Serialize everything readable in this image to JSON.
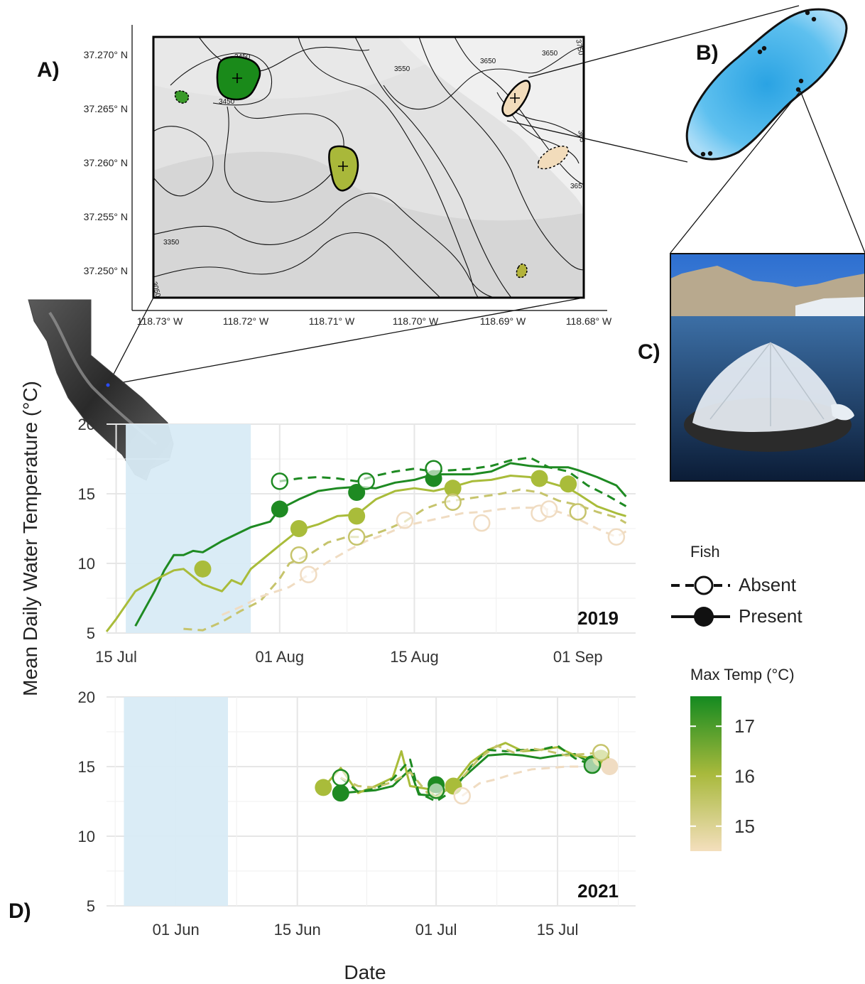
{
  "panel_labels": {
    "a": "A)",
    "b": "B)",
    "c": "C)",
    "d": "D)"
  },
  "map": {
    "lat_labels": [
      "37.270° N",
      "37.265° N",
      "37.260° N",
      "37.255° N",
      "37.250° N"
    ],
    "lon_labels": [
      "118.73° W",
      "118.72° W",
      "118.71° W",
      "118.70° W",
      "118.69° W",
      "118.68° W"
    ],
    "contour_labels": [
      "3450",
      "3450",
      "3550",
      "3650",
      "3650",
      "3350",
      "3050",
      "3750",
      "365",
      "365"
    ],
    "lake_colors": [
      "#1a8a1a",
      "#a9b83a",
      "#f2dcbb",
      "#3a9a2a",
      "#b3b33a"
    ]
  },
  "photo": {
    "description_icon": "photo-floating-enclosure"
  },
  "legend": {
    "fish_title": "Fish",
    "absent_label": "Absent",
    "present_label": "Present",
    "maxtemp_title": "Max Temp (°C)",
    "maxtemp_ticks": [
      "17",
      "16",
      "15"
    ],
    "maxtemp_tick_values": [
      17,
      16,
      15
    ],
    "maxtemp_range": [
      14.5,
      17.6
    ],
    "gradient_colors": [
      "#f4dfbd",
      "#a8b93c",
      "#148a20"
    ]
  },
  "y_axis_title": "Mean Daily Water Temperature (°C)",
  "x_axis_title": "Date",
  "colors": {
    "dark": "#1e8a22",
    "mid": "#a9bc3a",
    "light": "#c6c46c",
    "pale": "#f0dcc2",
    "shade": "#d8ebf6",
    "grid": "#e6e6e6"
  },
  "chart_data": [
    {
      "type": "line",
      "panel": "2019",
      "year_label": "2019",
      "xlabel": "",
      "ylabel": "Mean Daily Water Temperature (°C)",
      "ylim": [
        5,
        20
      ],
      "yticks": [
        5,
        10,
        15,
        20
      ],
      "xlim": [
        "2019-07-14",
        "2019-09-07"
      ],
      "xticks": [
        {
          "date": "2019-07-15",
          "label": "15 Jul"
        },
        {
          "date": "2019-08-01",
          "label": "01 Aug"
        },
        {
          "date": "2019-08-15",
          "label": "15 Aug"
        },
        {
          "date": "2019-09-01",
          "label": "01 Sep"
        }
      ],
      "shaded_period": [
        "2019-07-16",
        "2019-07-29"
      ],
      "grid": true,
      "series": [
        {
          "fish": "Present",
          "color": "#1e8a22",
          "x": [
            "2019-07-17",
            "2019-07-19",
            "2019-07-20",
            "2019-07-21",
            "2019-07-22",
            "2019-07-23",
            "2019-07-24",
            "2019-07-26",
            "2019-07-29",
            "2019-07-31",
            "2019-08-01",
            "2019-08-03",
            "2019-08-05",
            "2019-08-07",
            "2019-08-09",
            "2019-08-11",
            "2019-08-13",
            "2019-08-15",
            "2019-08-17",
            "2019-08-19",
            "2019-08-21",
            "2019-08-23",
            "2019-08-25",
            "2019-08-27",
            "2019-08-29",
            "2019-08-31",
            "2019-09-01",
            "2019-09-03",
            "2019-09-05",
            "2019-09-06"
          ],
          "y": [
            5.5,
            8.0,
            9.5,
            10.6,
            10.6,
            10.9,
            10.8,
            11.6,
            12.6,
            13.0,
            13.9,
            14.6,
            15.2,
            15.4,
            15.5,
            15.4,
            15.8,
            16.0,
            16.4,
            16.4,
            16.4,
            16.6,
            17.2,
            17.0,
            16.9,
            16.9,
            16.7,
            16.2,
            15.6,
            14.8
          ]
        },
        {
          "fish": "Present",
          "color": "#a9bc3a",
          "x": [
            "2019-07-14",
            "2019-07-15",
            "2019-07-17",
            "2019-07-19",
            "2019-07-21",
            "2019-07-22",
            "2019-07-24",
            "2019-07-26",
            "2019-07-27",
            "2019-07-28",
            "2019-07-29",
            "2019-08-01",
            "2019-08-03",
            "2019-08-05",
            "2019-08-07",
            "2019-08-09",
            "2019-08-11",
            "2019-08-13",
            "2019-08-15",
            "2019-08-17",
            "2019-08-19",
            "2019-08-21",
            "2019-08-23",
            "2019-08-25",
            "2019-08-27",
            "2019-08-29",
            "2019-08-31",
            "2019-09-01",
            "2019-09-03",
            "2019-09-05",
            "2019-09-06"
          ],
          "y": [
            5.1,
            6.0,
            8.0,
            8.8,
            9.5,
            9.6,
            8.5,
            8.0,
            8.8,
            8.5,
            9.6,
            11.3,
            12.4,
            12.8,
            13.4,
            13.5,
            14.6,
            15.2,
            15.4,
            15.2,
            15.5,
            15.9,
            16.0,
            16.3,
            16.2,
            15.8,
            15.4,
            15.0,
            14.1,
            13.6,
            13.4
          ]
        },
        {
          "fish": "Absent",
          "color": "#1e8a22",
          "x": [
            "2019-08-01",
            "2019-08-03",
            "2019-08-05",
            "2019-08-07",
            "2019-08-08",
            "2019-08-09",
            "2019-08-11",
            "2019-08-13",
            "2019-08-15",
            "2019-08-17",
            "2019-08-19",
            "2019-08-21",
            "2019-08-23",
            "2019-08-25",
            "2019-08-27",
            "2019-08-29",
            "2019-08-31",
            "2019-09-02",
            "2019-09-04",
            "2019-09-06"
          ],
          "y": [
            15.9,
            16.1,
            16.2,
            16.1,
            16.0,
            15.9,
            16.3,
            16.6,
            16.8,
            16.6,
            16.7,
            16.8,
            17.0,
            17.4,
            17.6,
            16.9,
            16.6,
            15.6,
            14.9,
            14.1
          ]
        },
        {
          "fish": "Absent",
          "color": "#c6c46c",
          "x": [
            "2019-07-22",
            "2019-07-24",
            "2019-07-26",
            "2019-07-28",
            "2019-07-30",
            "2019-08-01",
            "2019-08-02",
            "2019-08-04",
            "2019-08-06",
            "2019-08-08",
            "2019-08-10",
            "2019-08-12",
            "2019-08-14",
            "2019-08-16",
            "2019-08-18",
            "2019-08-20",
            "2019-08-22",
            "2019-08-24",
            "2019-08-26",
            "2019-08-28",
            "2019-08-30",
            "2019-09-01",
            "2019-09-03",
            "2019-09-05",
            "2019-09-06"
          ],
          "y": [
            5.3,
            5.2,
            5.8,
            6.6,
            7.3,
            8.9,
            10.0,
            10.6,
            11.5,
            11.9,
            11.9,
            12.4,
            13.0,
            13.9,
            14.4,
            14.6,
            14.8,
            15.0,
            15.3,
            15.1,
            14.5,
            14.2,
            13.7,
            13.3,
            12.9
          ]
        },
        {
          "fish": "Absent",
          "color": "#f0dcc2",
          "x": [
            "2019-07-26",
            "2019-07-28",
            "2019-07-30",
            "2019-08-02",
            "2019-08-04",
            "2019-08-06",
            "2019-08-08",
            "2019-08-10",
            "2019-08-12",
            "2019-08-14",
            "2019-08-16",
            "2019-08-18",
            "2019-08-20",
            "2019-08-22",
            "2019-08-24",
            "2019-08-26",
            "2019-08-28",
            "2019-08-30",
            "2019-09-01",
            "2019-09-03",
            "2019-09-05",
            "2019-09-06"
          ],
          "y": [
            6.3,
            6.9,
            7.6,
            8.3,
            9.2,
            10.1,
            10.9,
            11.6,
            12.1,
            12.7,
            13.0,
            13.3,
            13.6,
            13.7,
            13.9,
            14.0,
            14.0,
            13.7,
            13.2,
            12.5,
            11.9,
            12.3
          ]
        }
      ],
      "points": [
        {
          "date": "2019-07-24",
          "y": 9.6,
          "color": "#a9bc3a",
          "fish": "Present"
        },
        {
          "date": "2019-08-01",
          "y": 13.9,
          "color": "#1e8a22",
          "fish": "Present"
        },
        {
          "date": "2019-08-03",
          "y": 12.5,
          "color": "#a9bc3a",
          "fish": "Present"
        },
        {
          "date": "2019-08-09",
          "y": 13.4,
          "color": "#a9bc3a",
          "fish": "Present"
        },
        {
          "date": "2019-08-09",
          "y": 15.1,
          "color": "#1e8a22",
          "fish": "Present"
        },
        {
          "date": "2019-08-17",
          "y": 16.1,
          "color": "#1e8a22",
          "fish": "Present"
        },
        {
          "date": "2019-08-19",
          "y": 15.4,
          "color": "#a9bc3a",
          "fish": "Present"
        },
        {
          "date": "2019-08-28",
          "y": 16.1,
          "color": "#a9bc3a",
          "fish": "Present"
        },
        {
          "date": "2019-08-31",
          "y": 15.7,
          "color": "#a9bc3a",
          "fish": "Present"
        },
        {
          "date": "2019-08-01",
          "y": 15.9,
          "color": "#1e8a22",
          "fish": "Absent"
        },
        {
          "date": "2019-08-10",
          "y": 15.9,
          "color": "#1e8a22",
          "fish": "Absent"
        },
        {
          "date": "2019-08-17",
          "y": 16.8,
          "color": "#1e8a22",
          "fish": "Absent"
        },
        {
          "date": "2019-08-03",
          "y": 10.6,
          "color": "#c6c46c",
          "fish": "Absent"
        },
        {
          "date": "2019-08-09",
          "y": 11.9,
          "color": "#c6c46c",
          "fish": "Absent"
        },
        {
          "date": "2019-08-19",
          "y": 14.4,
          "color": "#c6c46c",
          "fish": "Absent"
        },
        {
          "date": "2019-09-01",
          "y": 13.7,
          "color": "#c6c46c",
          "fish": "Absent"
        },
        {
          "date": "2019-08-04",
          "y": 9.2,
          "color": "#f0dcc2",
          "fish": "Absent"
        },
        {
          "date": "2019-08-14",
          "y": 13.1,
          "color": "#f0dcc2",
          "fish": "Absent"
        },
        {
          "date": "2019-08-22",
          "y": 12.9,
          "color": "#f0dcc2",
          "fish": "Absent"
        },
        {
          "date": "2019-08-28",
          "y": 13.6,
          "color": "#f0dcc2",
          "fish": "Absent"
        },
        {
          "date": "2019-08-29",
          "y": 13.9,
          "color": "#f0dcc2",
          "fish": "Absent"
        },
        {
          "date": "2019-09-05",
          "y": 11.9,
          "color": "#f0dcc2",
          "fish": "Absent"
        }
      ]
    },
    {
      "type": "line",
      "panel": "2021",
      "year_label": "2021",
      "xlabel": "Date",
      "ylabel": "Mean Daily Water Temperature (°C)",
      "ylim": [
        5,
        20
      ],
      "yticks": [
        5,
        10,
        15,
        20
      ],
      "xlim": [
        "2021-05-24",
        "2021-07-24"
      ],
      "xticks": [
        {
          "date": "2021-06-01",
          "label": "01 Jun"
        },
        {
          "date": "2021-06-15",
          "label": "15 Jun"
        },
        {
          "date": "2021-07-01",
          "label": "01 Jul"
        },
        {
          "date": "2021-07-15",
          "label": "15 Jul"
        }
      ],
      "shaded_period": [
        "2021-05-26",
        "2021-06-07"
      ],
      "grid": true,
      "series": [
        {
          "fish": "Present",
          "color": "#1e8a22",
          "x": [
            "2021-06-20",
            "2021-06-22",
            "2021-06-24",
            "2021-06-26",
            "2021-06-28",
            "2021-06-29",
            "2021-07-01",
            "2021-07-03",
            "2021-07-05",
            "2021-07-07",
            "2021-07-09",
            "2021-07-11",
            "2021-07-13",
            "2021-07-15",
            "2021-07-17",
            "2021-07-19"
          ],
          "y": [
            13.1,
            13.2,
            13.3,
            13.6,
            14.8,
            13.0,
            12.9,
            13.6,
            14.7,
            15.8,
            15.9,
            15.8,
            15.6,
            15.8,
            15.9,
            15.2
          ]
        },
        {
          "fish": "Present",
          "color": "#a9bc3a",
          "x": [
            "2021-06-18",
            "2021-06-20",
            "2021-06-22",
            "2021-06-24",
            "2021-06-26",
            "2021-06-27",
            "2021-06-28",
            "2021-06-30",
            "2021-07-01",
            "2021-07-03",
            "2021-07-05",
            "2021-07-07",
            "2021-07-09",
            "2021-07-11",
            "2021-07-13",
            "2021-07-15",
            "2021-07-17",
            "2021-07-19"
          ],
          "y": [
            13.5,
            14.9,
            13.1,
            13.6,
            14.2,
            16.1,
            13.6,
            13.4,
            12.8,
            13.7,
            15.3,
            16.2,
            16.7,
            16.1,
            16.2,
            16.4,
            15.8,
            15.6
          ]
        },
        {
          "fish": "Absent",
          "color": "#1e8a22",
          "x": [
            "2021-06-20",
            "2021-06-22",
            "2021-06-24",
            "2021-06-26",
            "2021-06-28",
            "2021-06-29",
            "2021-07-01",
            "2021-07-03",
            "2021-07-05",
            "2021-07-07",
            "2021-07-09",
            "2021-07-11",
            "2021-07-13",
            "2021-07-15",
            "2021-07-17",
            "2021-07-19"
          ],
          "y": [
            14.2,
            13.2,
            13.4,
            14.1,
            15.5,
            13.1,
            12.5,
            13.3,
            15.0,
            16.2,
            16.1,
            16.2,
            16.2,
            16.5,
            15.6,
            15.1
          ]
        },
        {
          "fish": "Absent",
          "color": "#c6c46c",
          "x": [
            "2021-06-20",
            "2021-06-22",
            "2021-06-24",
            "2021-06-26",
            "2021-06-28",
            "2021-06-30",
            "2021-07-02",
            "2021-07-04",
            "2021-07-06",
            "2021-07-08",
            "2021-07-10",
            "2021-07-12",
            "2021-07-14",
            "2021-07-16",
            "2021-07-18",
            "2021-07-20"
          ],
          "y": [
            14.2,
            13.6,
            13.5,
            13.9,
            14.6,
            13.1,
            13.3,
            14.2,
            15.6,
            16.5,
            16.0,
            16.3,
            16.1,
            15.8,
            15.9,
            16.0
          ]
        },
        {
          "fish": "Absent",
          "color": "#f0dcc2",
          "x": [
            "2021-07-04",
            "2021-07-06",
            "2021-07-08",
            "2021-07-10",
            "2021-07-12",
            "2021-07-14",
            "2021-07-16",
            "2021-07-18",
            "2021-07-20",
            "2021-07-21"
          ],
          "y": [
            12.9,
            13.8,
            14.1,
            14.5,
            14.8,
            14.9,
            15.0,
            15.0,
            15.0,
            15.0
          ]
        }
      ],
      "points": [
        {
          "date": "2021-06-18",
          "y": 13.5,
          "color": "#a9bc3a",
          "fish": "Present"
        },
        {
          "date": "2021-06-20",
          "y": 13.1,
          "color": "#1e8a22",
          "fish": "Present"
        },
        {
          "date": "2021-07-01",
          "y": 13.7,
          "color": "#1e8a22",
          "fish": "Present"
        },
        {
          "date": "2021-07-03",
          "y": 13.6,
          "color": "#a9bc3a",
          "fish": "Present"
        },
        {
          "date": "2021-07-19",
          "y": 15.2,
          "color": "#1e8a22",
          "fish": "Present"
        },
        {
          "date": "2021-07-20",
          "y": 15.6,
          "color": "#a9bc3a",
          "fish": "Present"
        },
        {
          "date": "2021-07-21",
          "y": 15.0,
          "color": "#f0dcc2",
          "fish": "Present"
        },
        {
          "date": "2021-06-20",
          "y": 14.2,
          "color": "#1e8a22",
          "fish": "Absent"
        },
        {
          "date": "2021-07-01",
          "y": 13.3,
          "color": "#1e8a22",
          "fish": "Absent"
        },
        {
          "date": "2021-07-04",
          "y": 12.9,
          "color": "#f0dcc2",
          "fish": "Absent"
        },
        {
          "date": "2021-07-19",
          "y": 15.1,
          "color": "#1e8a22",
          "fish": "Absent"
        },
        {
          "date": "2021-07-20",
          "y": 16.0,
          "color": "#c6c46c",
          "fish": "Absent"
        }
      ]
    }
  ]
}
